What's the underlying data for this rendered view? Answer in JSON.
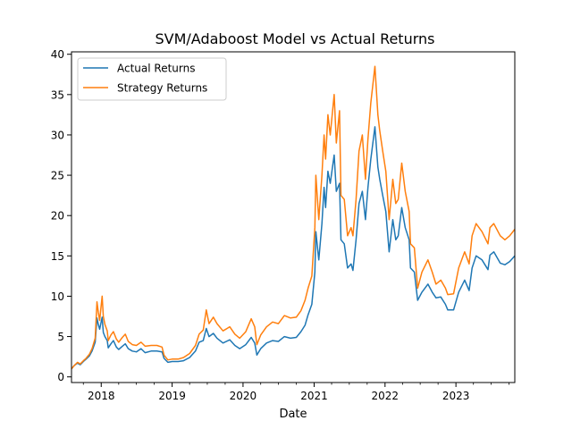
{
  "chart_data": {
    "type": "line",
    "title": "SVM/Adaboost Model vs Actual Returns",
    "xlabel": "Date",
    "ylabel": "",
    "xlim": [
      "2017-08-01",
      "2023-10-31"
    ],
    "ylim": [
      -0.7,
      40.3
    ],
    "x_ticks": [
      "2018",
      "2019",
      "2020",
      "2021",
      "2022",
      "2023"
    ],
    "y_ticks": [
      0,
      5,
      10,
      15,
      20,
      25,
      30,
      35,
      40
    ],
    "grid": false,
    "legend": "upper-left",
    "series": [
      {
        "name": "Actual Returns",
        "color": "#1f77b4",
        "points": [
          [
            "2017-08-01",
            1.0
          ],
          [
            "2017-08-15",
            1.4
          ],
          [
            "2017-09-01",
            1.7
          ],
          [
            "2017-09-15",
            1.5
          ],
          [
            "2017-10-01",
            1.9
          ],
          [
            "2017-10-15",
            2.2
          ],
          [
            "2017-11-01",
            2.6
          ],
          [
            "2017-11-15",
            3.2
          ],
          [
            "2017-12-01",
            4.3
          ],
          [
            "2017-12-10",
            7.3
          ],
          [
            "2017-12-17",
            6.5
          ],
          [
            "2017-12-24",
            5.9
          ],
          [
            "2018-01-06",
            7.4
          ],
          [
            "2018-01-12",
            5.5
          ],
          [
            "2018-01-20",
            5.0
          ],
          [
            "2018-02-01",
            4.5
          ],
          [
            "2018-02-06",
            3.6
          ],
          [
            "2018-02-20",
            4.1
          ],
          [
            "2018-03-05",
            4.5
          ],
          [
            "2018-03-20",
            3.7
          ],
          [
            "2018-04-01",
            3.4
          ],
          [
            "2018-04-20",
            3.8
          ],
          [
            "2018-05-05",
            4.1
          ],
          [
            "2018-05-20",
            3.5
          ],
          [
            "2018-06-10",
            3.2
          ],
          [
            "2018-07-01",
            3.1
          ],
          [
            "2018-07-25",
            3.5
          ],
          [
            "2018-08-15",
            3.0
          ],
          [
            "2018-09-15",
            3.2
          ],
          [
            "2018-10-15",
            3.2
          ],
          [
            "2018-11-10",
            3.1
          ],
          [
            "2018-11-20",
            2.3
          ],
          [
            "2018-12-10",
            1.8
          ],
          [
            "2019-01-01",
            1.9
          ],
          [
            "2019-02-01",
            1.9
          ],
          [
            "2019-03-01",
            2.0
          ],
          [
            "2019-04-01",
            2.4
          ],
          [
            "2019-05-01",
            3.2
          ],
          [
            "2019-05-20",
            4.3
          ],
          [
            "2019-06-10",
            4.5
          ],
          [
            "2019-06-26",
            6.0
          ],
          [
            "2019-07-10",
            5.0
          ],
          [
            "2019-08-01",
            5.4
          ],
          [
            "2019-08-20",
            4.8
          ],
          [
            "2019-09-20",
            4.2
          ],
          [
            "2019-10-25",
            4.6
          ],
          [
            "2019-11-20",
            3.9
          ],
          [
            "2019-12-15",
            3.5
          ],
          [
            "2020-01-15",
            4.0
          ],
          [
            "2020-02-12",
            4.9
          ],
          [
            "2020-03-01",
            4.2
          ],
          [
            "2020-03-12",
            2.7
          ],
          [
            "2020-04-01",
            3.5
          ],
          [
            "2020-05-01",
            4.2
          ],
          [
            "2020-06-01",
            4.5
          ],
          [
            "2020-07-01",
            4.4
          ],
          [
            "2020-08-01",
            5.0
          ],
          [
            "2020-09-01",
            4.8
          ],
          [
            "2020-10-01",
            4.9
          ],
          [
            "2020-10-25",
            5.6
          ],
          [
            "2020-11-15",
            6.4
          ],
          [
            "2020-12-01",
            7.7
          ],
          [
            "2020-12-20",
            9.0
          ],
          [
            "2021-01-05",
            13.0
          ],
          [
            "2021-01-10",
            18.0
          ],
          [
            "2021-01-25",
            14.5
          ],
          [
            "2021-02-10",
            19.0
          ],
          [
            "2021-02-21",
            23.5
          ],
          [
            "2021-03-01",
            21.0
          ],
          [
            "2021-03-13",
            25.5
          ],
          [
            "2021-03-25",
            24.0
          ],
          [
            "2021-04-14",
            27.5
          ],
          [
            "2021-04-25",
            23.0
          ],
          [
            "2021-05-12",
            24.0
          ],
          [
            "2021-05-19",
            17.0
          ],
          [
            "2021-06-05",
            16.5
          ],
          [
            "2021-06-22",
            13.5
          ],
          [
            "2021-07-10",
            14.0
          ],
          [
            "2021-07-20",
            13.2
          ],
          [
            "2021-08-05",
            17.0
          ],
          [
            "2021-08-20",
            21.5
          ],
          [
            "2021-09-06",
            23.0
          ],
          [
            "2021-09-22",
            19.5
          ],
          [
            "2021-10-05",
            23.5
          ],
          [
            "2021-10-20",
            27.0
          ],
          [
            "2021-11-10",
            31.0
          ],
          [
            "2021-11-25",
            26.0
          ],
          [
            "2021-12-05",
            24.5
          ],
          [
            "2021-12-20",
            22.5
          ],
          [
            "2022-01-05",
            20.5
          ],
          [
            "2022-01-22",
            15.5
          ],
          [
            "2022-02-10",
            19.5
          ],
          [
            "2022-02-25",
            17.0
          ],
          [
            "2022-03-10",
            17.5
          ],
          [
            "2022-03-28",
            21.0
          ],
          [
            "2022-04-15",
            18.5
          ],
          [
            "2022-05-05",
            17.0
          ],
          [
            "2022-05-12",
            13.5
          ],
          [
            "2022-06-01",
            13.0
          ],
          [
            "2022-06-18",
            9.5
          ],
          [
            "2022-07-10",
            10.5
          ],
          [
            "2022-08-10",
            11.5
          ],
          [
            "2022-09-01",
            10.5
          ],
          [
            "2022-09-20",
            9.8
          ],
          [
            "2022-10-15",
            9.9
          ],
          [
            "2022-11-08",
            9.0
          ],
          [
            "2022-11-20",
            8.3
          ],
          [
            "2022-12-20",
            8.3
          ],
          [
            "2023-01-15",
            10.5
          ],
          [
            "2023-02-15",
            12.0
          ],
          [
            "2023-03-10",
            10.7
          ],
          [
            "2023-03-25",
            13.5
          ],
          [
            "2023-04-15",
            15.0
          ],
          [
            "2023-05-15",
            14.5
          ],
          [
            "2023-06-15",
            13.3
          ],
          [
            "2023-06-25",
            15.1
          ],
          [
            "2023-07-15",
            15.5
          ],
          [
            "2023-08-17",
            14.1
          ],
          [
            "2023-09-10",
            13.9
          ],
          [
            "2023-10-05",
            14.3
          ],
          [
            "2023-10-31",
            15.0
          ]
        ]
      },
      {
        "name": "Strategy Returns",
        "color": "#ff7f0e",
        "points": [
          [
            "2017-08-01",
            1.0
          ],
          [
            "2017-08-15",
            1.4
          ],
          [
            "2017-09-01",
            1.8
          ],
          [
            "2017-09-15",
            1.6
          ],
          [
            "2017-10-01",
            2.0
          ],
          [
            "2017-10-15",
            2.3
          ],
          [
            "2017-11-01",
            2.8
          ],
          [
            "2017-11-15",
            3.5
          ],
          [
            "2017-12-01",
            4.8
          ],
          [
            "2017-12-10",
            9.3
          ],
          [
            "2017-12-17",
            8.0
          ],
          [
            "2017-12-24",
            7.0
          ],
          [
            "2018-01-06",
            10.0
          ],
          [
            "2018-01-12",
            7.5
          ],
          [
            "2018-01-20",
            6.5
          ],
          [
            "2018-02-01",
            5.7
          ],
          [
            "2018-02-06",
            4.5
          ],
          [
            "2018-02-20",
            5.2
          ],
          [
            "2018-03-05",
            5.6
          ],
          [
            "2018-03-20",
            4.7
          ],
          [
            "2018-04-01",
            4.3
          ],
          [
            "2018-04-20",
            4.9
          ],
          [
            "2018-05-05",
            5.3
          ],
          [
            "2018-05-20",
            4.4
          ],
          [
            "2018-06-10",
            4.0
          ],
          [
            "2018-07-01",
            3.9
          ],
          [
            "2018-07-25",
            4.3
          ],
          [
            "2018-08-15",
            3.8
          ],
          [
            "2018-09-15",
            3.9
          ],
          [
            "2018-10-15",
            3.9
          ],
          [
            "2018-11-10",
            3.7
          ],
          [
            "2018-11-20",
            2.7
          ],
          [
            "2018-12-10",
            2.1
          ],
          [
            "2019-01-01",
            2.2
          ],
          [
            "2019-02-01",
            2.2
          ],
          [
            "2019-03-01",
            2.4
          ],
          [
            "2019-04-01",
            2.9
          ],
          [
            "2019-05-01",
            3.9
          ],
          [
            "2019-05-20",
            5.3
          ],
          [
            "2019-06-10",
            5.8
          ],
          [
            "2019-06-26",
            8.3
          ],
          [
            "2019-07-10",
            6.6
          ],
          [
            "2019-08-01",
            7.4
          ],
          [
            "2019-08-20",
            6.6
          ],
          [
            "2019-09-20",
            5.7
          ],
          [
            "2019-10-25",
            6.2
          ],
          [
            "2019-11-20",
            5.3
          ],
          [
            "2019-12-15",
            4.8
          ],
          [
            "2020-01-15",
            5.6
          ],
          [
            "2020-02-12",
            7.2
          ],
          [
            "2020-03-01",
            6.2
          ],
          [
            "2020-03-12",
            4.0
          ],
          [
            "2020-04-01",
            5.2
          ],
          [
            "2020-05-01",
            6.2
          ],
          [
            "2020-06-01",
            6.8
          ],
          [
            "2020-07-01",
            6.6
          ],
          [
            "2020-08-01",
            7.6
          ],
          [
            "2020-09-01",
            7.3
          ],
          [
            "2020-10-01",
            7.4
          ],
          [
            "2020-10-25",
            8.2
          ],
          [
            "2020-11-15",
            9.5
          ],
          [
            "2020-12-01",
            11.0
          ],
          [
            "2020-12-20",
            12.5
          ],
          [
            "2021-01-05",
            18.5
          ],
          [
            "2021-01-10",
            25.0
          ],
          [
            "2021-01-25",
            19.5
          ],
          [
            "2021-02-10",
            25.0
          ],
          [
            "2021-02-21",
            30.0
          ],
          [
            "2021-03-01",
            27.0
          ],
          [
            "2021-03-13",
            32.5
          ],
          [
            "2021-03-25",
            30.0
          ],
          [
            "2021-04-14",
            35.0
          ],
          [
            "2021-04-25",
            29.0
          ],
          [
            "2021-05-12",
            33.0
          ],
          [
            "2021-05-19",
            22.5
          ],
          [
            "2021-06-05",
            22.0
          ],
          [
            "2021-06-22",
            17.5
          ],
          [
            "2021-07-10",
            18.5
          ],
          [
            "2021-07-20",
            17.5
          ],
          [
            "2021-08-05",
            22.0
          ],
          [
            "2021-08-20",
            28.0
          ],
          [
            "2021-09-06",
            30.0
          ],
          [
            "2021-09-22",
            24.5
          ],
          [
            "2021-10-05",
            29.5
          ],
          [
            "2021-10-20",
            34.0
          ],
          [
            "2021-11-10",
            38.5
          ],
          [
            "2021-11-25",
            32.5
          ],
          [
            "2021-12-05",
            30.5
          ],
          [
            "2021-12-20",
            28.0
          ],
          [
            "2022-01-05",
            25.5
          ],
          [
            "2022-01-22",
            19.5
          ],
          [
            "2022-02-10",
            24.5
          ],
          [
            "2022-02-25",
            21.5
          ],
          [
            "2022-03-10",
            22.0
          ],
          [
            "2022-03-28",
            26.5
          ],
          [
            "2022-04-15",
            23.0
          ],
          [
            "2022-05-05",
            20.5
          ],
          [
            "2022-05-12",
            16.5
          ],
          [
            "2022-06-01",
            16.0
          ],
          [
            "2022-06-18",
            11.0
          ],
          [
            "2022-07-10",
            13.0
          ],
          [
            "2022-08-10",
            14.5
          ],
          [
            "2022-09-01",
            13.0
          ],
          [
            "2022-09-20",
            11.5
          ],
          [
            "2022-10-15",
            12.0
          ],
          [
            "2022-11-08",
            11.0
          ],
          [
            "2022-11-20",
            10.2
          ],
          [
            "2022-12-20",
            10.3
          ],
          [
            "2023-01-15",
            13.5
          ],
          [
            "2023-02-15",
            15.5
          ],
          [
            "2023-03-10",
            14.0
          ],
          [
            "2023-03-25",
            17.5
          ],
          [
            "2023-04-15",
            19.0
          ],
          [
            "2023-05-15",
            18.0
          ],
          [
            "2023-06-15",
            16.5
          ],
          [
            "2023-06-25",
            18.5
          ],
          [
            "2023-07-15",
            19.0
          ],
          [
            "2023-08-17",
            17.5
          ],
          [
            "2023-09-10",
            17.0
          ],
          [
            "2023-10-05",
            17.5
          ],
          [
            "2023-10-31",
            18.3
          ]
        ]
      }
    ]
  }
}
